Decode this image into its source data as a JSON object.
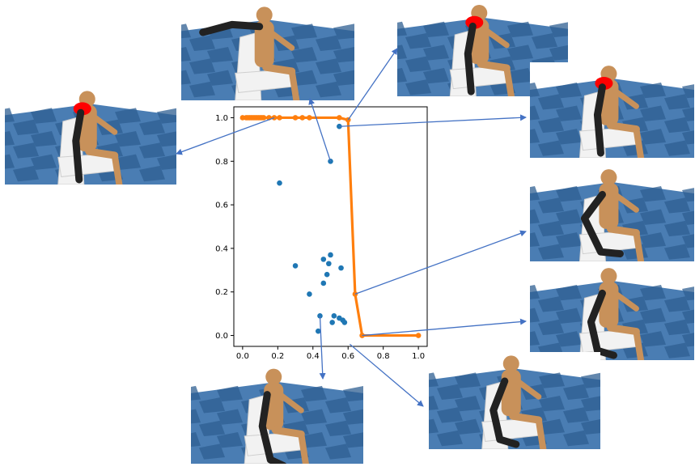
{
  "chart_data": {
    "type": "scatter",
    "title": "",
    "xlabel": "",
    "ylabel": "",
    "xlim": [
      -0.05,
      1.05
    ],
    "ylim": [
      -0.05,
      1.05
    ],
    "xticks": [
      "0.0",
      "0.2",
      "0.4",
      "0.6",
      "0.8",
      "1.0"
    ],
    "yticks": [
      "0.0",
      "0.2",
      "0.4",
      "0.6",
      "0.8",
      "1.0"
    ],
    "grid": false,
    "legend": "none",
    "series": [
      {
        "kind": "scatter",
        "color": "#1f77b4",
        "points": [
          [
            0.21,
            0.7
          ],
          [
            0.5,
            0.8
          ],
          [
            0.55,
            0.96
          ],
          [
            0.3,
            0.32
          ],
          [
            0.38,
            0.19
          ],
          [
            0.46,
            0.35
          ],
          [
            0.49,
            0.33
          ],
          [
            0.5,
            0.37
          ],
          [
            0.48,
            0.28
          ],
          [
            0.56,
            0.31
          ],
          [
            0.46,
            0.24
          ],
          [
            0.44,
            0.09
          ],
          [
            0.43,
            0.02
          ],
          [
            0.51,
            0.06
          ],
          [
            0.52,
            0.09
          ],
          [
            0.55,
            0.08
          ],
          [
            0.57,
            0.07
          ],
          [
            0.58,
            0.06
          ]
        ]
      },
      {
        "kind": "line",
        "color": "#ff7f0e",
        "points": [
          [
            0.0,
            1.0
          ],
          [
            0.02,
            1.0
          ],
          [
            0.03,
            1.0
          ],
          [
            0.04,
            1.0
          ],
          [
            0.05,
            1.0
          ],
          [
            0.06,
            1.0
          ],
          [
            0.07,
            1.0
          ],
          [
            0.08,
            1.0
          ],
          [
            0.09,
            1.0
          ],
          [
            0.1,
            1.0
          ],
          [
            0.11,
            1.0
          ],
          [
            0.12,
            1.0
          ],
          [
            0.15,
            1.0
          ],
          [
            0.18,
            1.0
          ],
          [
            0.21,
            1.0
          ],
          [
            0.3,
            1.0
          ],
          [
            0.34,
            1.0
          ],
          [
            0.38,
            1.0
          ],
          [
            0.55,
            1.0
          ],
          [
            0.6,
            0.99
          ],
          [
            0.64,
            0.19
          ],
          [
            0.68,
            0.0
          ],
          [
            1.0,
            0.0
          ]
        ]
      }
    ]
  },
  "colors": {
    "floor_light": "#4a7db3",
    "floor_dark": "#2f5f92",
    "arrow": "#4472c4",
    "highlight": "#ff0000",
    "body_skin": "#c8915a",
    "arm_dark": "#222222",
    "chair": "#f2f2f2"
  },
  "thumbnails": [
    {
      "name": "thumb-left-top",
      "red_head": true,
      "arm": "down"
    },
    {
      "name": "thumb-top-center",
      "red_head": false,
      "arm": "reach-left"
    },
    {
      "name": "thumb-top-right",
      "red_head": true,
      "arm": "down"
    },
    {
      "name": "thumb-right-1",
      "red_head": true,
      "arm": "down"
    },
    {
      "name": "thumb-right-2",
      "red_head": false,
      "arm": "raise-knee"
    },
    {
      "name": "thumb-right-3",
      "red_head": false,
      "arm": "bent"
    },
    {
      "name": "thumb-bottom-center",
      "red_head": false,
      "arm": "down-knee"
    },
    {
      "name": "thumb-bottom-right",
      "red_head": false,
      "arm": "bent"
    }
  ]
}
